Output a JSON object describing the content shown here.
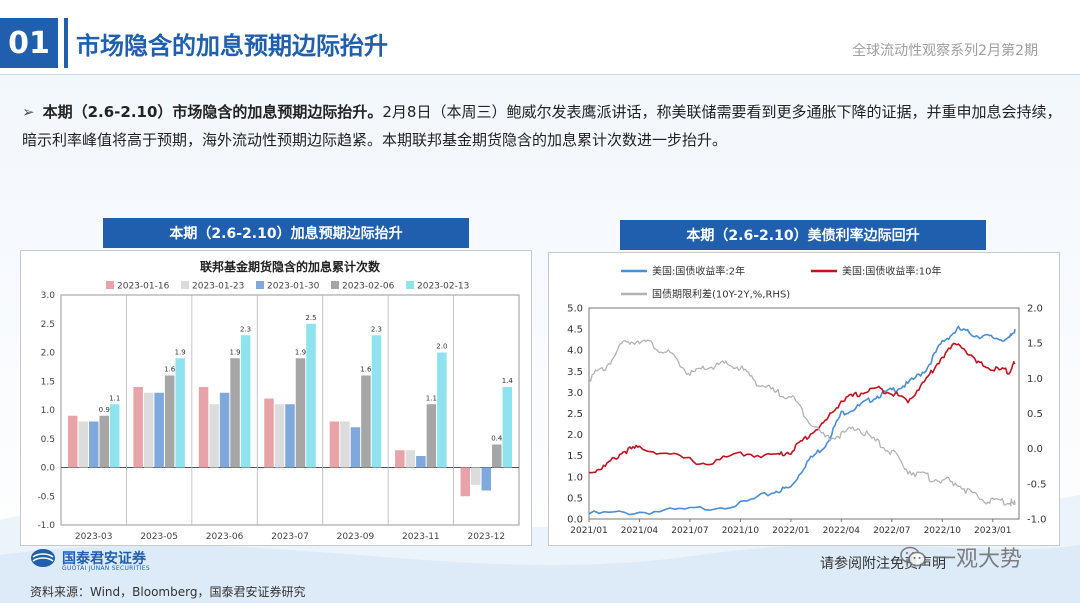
{
  "header": {
    "section_number": "01",
    "title": "市场隐含的加息预期边际抬升",
    "series_label": "全球流动性观察系列2月第2期"
  },
  "summary": {
    "bold_lead": "本期（2.6-2.10）市场隐含的加息预期边际抬升。",
    "text": "2月8日（本周三）鲍威尔发表鹰派讲话，称美联储需要看到更多通胀下降的证据，并重申加息会持续，暗示利率峰值将高于预期，海外流动性预期边际趋紧。本期联邦基金期货隐含的加息累计次数进一步抬升。"
  },
  "left_panel": {
    "caption": "本期（2.6-2.10）加息预期边际抬升"
  },
  "right_panel": {
    "caption": "本期（2.6-2.10）美债利率边际回升"
  },
  "chart_data": [
    {
      "type": "bar",
      "title": "联邦基金期货隐含的加息累计次数",
      "categories": [
        "2023-03",
        "2023-05",
        "2023-06",
        "2023-07",
        "2023-09",
        "2023-11",
        "2023-12"
      ],
      "ylim": [
        -1.0,
        3.0
      ],
      "yticks": [
        "3.0",
        "2.5",
        "2.0",
        "1.5",
        "1.0",
        "0.5",
        "0.0",
        "-0.5",
        "-1.0"
      ],
      "legend_position": "top",
      "grid": false,
      "series": [
        {
          "name": "2023-01-16",
          "color": "#e8a3a8",
          "values": [
            0.9,
            1.4,
            1.4,
            1.2,
            0.8,
            0.3,
            -0.5
          ]
        },
        {
          "name": "2023-01-23",
          "color": "#dcdcdc",
          "values": [
            0.8,
            1.3,
            1.1,
            1.1,
            0.8,
            0.3,
            -0.3
          ]
        },
        {
          "name": "2023-01-30",
          "color": "#7fa8dc",
          "values": [
            0.8,
            1.3,
            1.3,
            1.1,
            0.7,
            0.2,
            -0.4
          ]
        },
        {
          "name": "2023-02-06",
          "color": "#a6a6a6",
          "values": [
            0.9,
            1.6,
            1.9,
            1.9,
            1.6,
            1.1,
            0.4
          ]
        },
        {
          "name": "2023-02-13",
          "color": "#8fe3ee",
          "values": [
            1.1,
            1.9,
            2.3,
            2.5,
            2.3,
            2.0,
            1.4
          ]
        }
      ],
      "data_labels": {
        "2023-02-06": [
          "0.9",
          "1.6",
          "1.9",
          "1.9",
          "1.6",
          "1.1",
          "0.4"
        ],
        "2023-02-13": [
          "1.1",
          "1.9",
          "2.3",
          "2.5",
          "2.3",
          "2.0",
          "1.4"
        ]
      }
    },
    {
      "type": "line",
      "x_ticks": [
        "2021/01",
        "2021/04",
        "2021/07",
        "2021/10",
        "2022/01",
        "2022/04",
        "2022/07",
        "2022/10",
        "2023/01"
      ],
      "ylim_left": [
        0.0,
        5.0
      ],
      "yticks_left": [
        "5.0",
        "4.5",
        "4.0",
        "3.5",
        "3.0",
        "2.5",
        "2.0",
        "1.5",
        "1.0",
        "0.5",
        "0.0"
      ],
      "ylim_right": [
        -1.0,
        2.0
      ],
      "yticks_right": [
        "2.0",
        "1.5",
        "1.0",
        "0.5",
        "0.0",
        "-0.5",
        "-1.0"
      ],
      "legend_position": "top-left",
      "grid": false,
      "series": [
        {
          "name": "美国:国债收益率:2年",
          "color": "#4a8fd4",
          "axis": "left",
          "x": [
            2021.0,
            2021.25,
            2021.5,
            2021.75,
            2021.92,
            2022.0,
            2022.08,
            2022.17,
            2022.25,
            2022.33,
            2022.42,
            2022.5,
            2022.58,
            2022.67,
            2022.75,
            2022.83,
            2022.92,
            2023.0,
            2023.08,
            2023.11
          ],
          "y": [
            0.12,
            0.16,
            0.22,
            0.35,
            0.65,
            0.75,
            1.35,
            1.75,
            2.5,
            2.65,
            2.9,
            3.05,
            3.2,
            3.55,
            4.2,
            4.5,
            4.35,
            4.3,
            4.25,
            4.5
          ]
        },
        {
          "name": "美国:国债收益率:10年",
          "color": "#c1121f",
          "axis": "left",
          "x": [
            2021.0,
            2021.08,
            2021.17,
            2021.25,
            2021.42,
            2021.58,
            2021.75,
            2021.92,
            2022.0,
            2022.08,
            2022.17,
            2022.25,
            2022.33,
            2022.42,
            2022.5,
            2022.58,
            2022.67,
            2022.75,
            2022.83,
            2022.92,
            2023.0,
            2023.08,
            2023.11
          ],
          "y": [
            1.1,
            1.25,
            1.6,
            1.7,
            1.5,
            1.3,
            1.55,
            1.5,
            1.6,
            1.95,
            2.3,
            2.8,
            2.95,
            3.1,
            3.0,
            2.8,
            3.3,
            3.85,
            4.2,
            3.7,
            3.55,
            3.5,
            3.7
          ]
        },
        {
          "name": "国债期限利差(10Y-2Y,%,RHS)",
          "color": "#b3b3b3",
          "axis": "right",
          "x": [
            2021.0,
            2021.08,
            2021.17,
            2021.25,
            2021.33,
            2021.42,
            2021.5,
            2021.58,
            2021.67,
            2021.75,
            2021.83,
            2021.92,
            2022.0,
            2022.08,
            2022.17,
            2022.25,
            2022.33,
            2022.42,
            2022.5,
            2022.58,
            2022.67,
            2022.75,
            2022.83,
            2022.92,
            2023.0,
            2023.08,
            2023.11
          ],
          "y": [
            1.0,
            1.15,
            1.5,
            1.55,
            1.45,
            1.3,
            1.05,
            1.15,
            1.2,
            1.15,
            0.95,
            0.8,
            0.75,
            0.45,
            0.15,
            0.2,
            0.3,
            0.1,
            -0.05,
            -0.3,
            -0.4,
            -0.45,
            -0.5,
            -0.7,
            -0.75,
            -0.75,
            -0.8
          ]
        }
      ]
    }
  ],
  "footer": {
    "logo_cn": "国泰君安证券",
    "logo_en": "GUOTAI JUNAN SECURITIES",
    "source": "资料来源：Wind，Bloomberg，国泰君安证券研究",
    "disclaimer": "请参阅附注免责声明",
    "watermark": "一观大势"
  }
}
